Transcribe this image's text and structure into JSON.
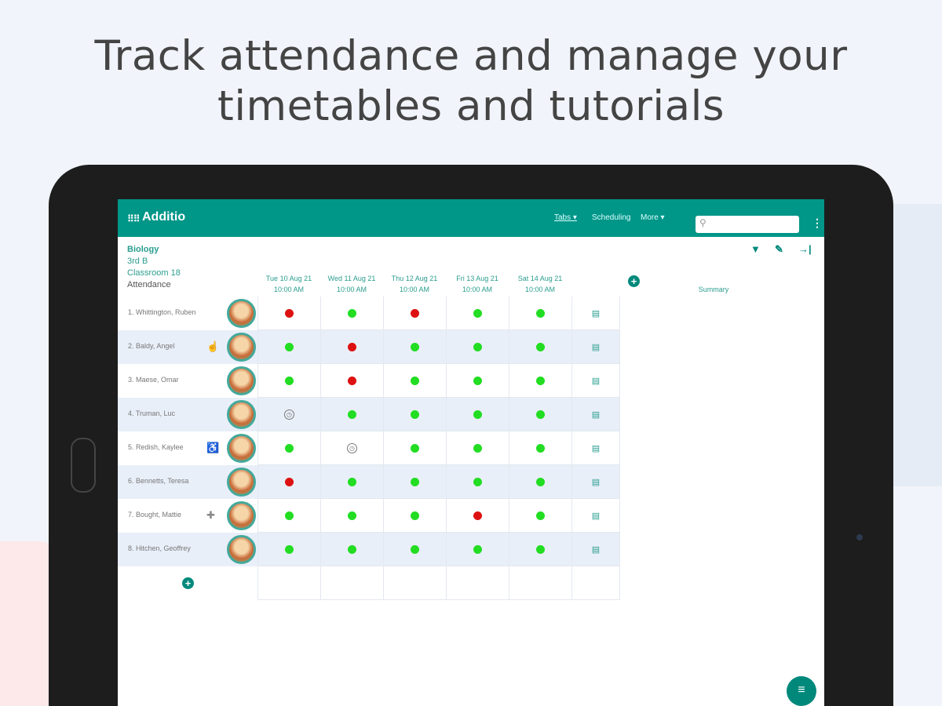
{
  "headline": [
    "Track attendance and manage your",
    "timetables and tutorials"
  ],
  "app": {
    "brand": "Additio",
    "nav": {
      "tabs": "Tabs ▾",
      "scheduling": "Scheduling",
      "more": "More ▾"
    },
    "search_placeholder": ""
  },
  "class_info": {
    "subject": "Biology",
    "group": "3rd B",
    "room": "Classroom 18",
    "view": "Attendance"
  },
  "columns": [
    {
      "date": "Tue 10 Aug 21",
      "time": "10:00 AM"
    },
    {
      "date": "Wed 11 Aug 21",
      "time": "10:00 AM"
    },
    {
      "date": "Thu 12 Aug 21",
      "time": "10:00 AM"
    },
    {
      "date": "Fri 13 Aug 21",
      "time": "10:00 AM"
    },
    {
      "date": "Sat 14 Aug 21",
      "time": "10:00 AM"
    }
  ],
  "summary_label": "Summary",
  "colors": {
    "present": "#22dd22",
    "absent": "#dd1111",
    "accent": "#009688"
  },
  "students": [
    {
      "name": "1. Whittington, Ruben",
      "note": "",
      "attendance": [
        "absent",
        "present",
        "absent",
        "present",
        "present"
      ]
    },
    {
      "name": "2. Baldy, Angel",
      "note": "hand-icon",
      "attendance": [
        "present",
        "absent",
        "present",
        "present",
        "present"
      ]
    },
    {
      "name": "3. Maese, Omar",
      "note": "",
      "attendance": [
        "present",
        "absent",
        "present",
        "present",
        "present"
      ]
    },
    {
      "name": "4. Truman, Luc",
      "note": "",
      "attendance": [
        "late",
        "present",
        "present",
        "present",
        "present"
      ]
    },
    {
      "name": "5. Redish, Kaylee",
      "note": "wheelchair-icon",
      "attendance": [
        "present",
        "late",
        "present",
        "present",
        "present"
      ]
    },
    {
      "name": "6. Bennetts, Teresa",
      "note": "",
      "attendance": [
        "absent",
        "present",
        "present",
        "present",
        "present"
      ]
    },
    {
      "name": "7. Bought, Mattie",
      "note": "medical-icon",
      "attendance": [
        "present",
        "present",
        "present",
        "absent",
        "present"
      ]
    },
    {
      "name": "8. Hitchen, Geoffrey",
      "note": "",
      "attendance": [
        "present",
        "present",
        "present",
        "present",
        "present"
      ]
    }
  ]
}
